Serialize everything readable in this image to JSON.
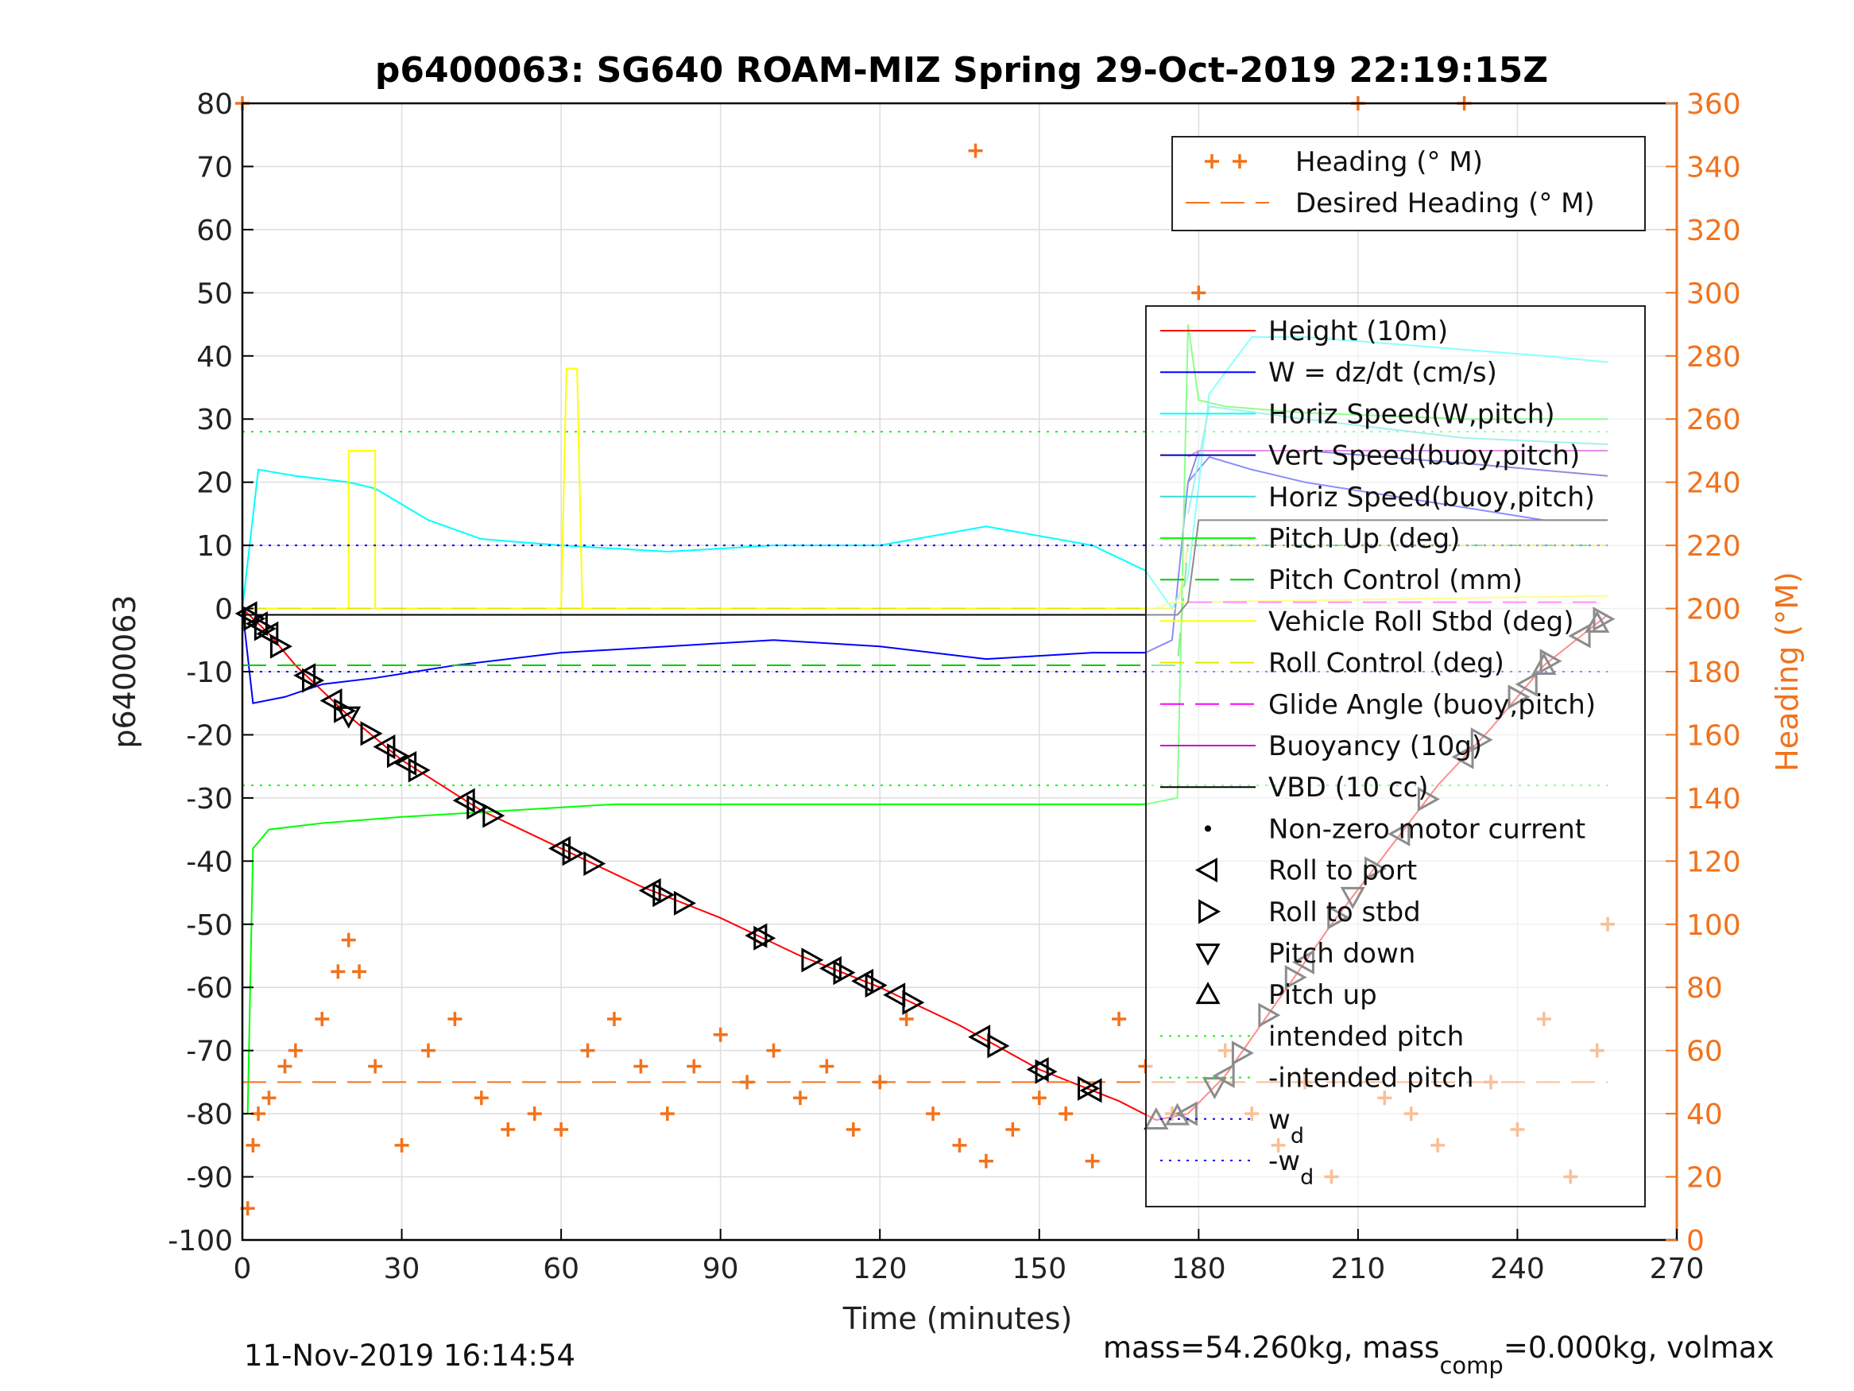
{
  "colors": {
    "heading": "#f2721c",
    "height": "#ff0000",
    "w": "#0000ff",
    "horiz_w": "#00ffff",
    "vert_buoy": "#0000bb",
    "horiz_buoy": "#33dddd",
    "pitch_up": "#00ff00",
    "pitch_control": "#00cc00",
    "roll": "#ffff00",
    "roll_control": "#e6e600",
    "glide": "#ff00ff",
    "buoyancy": "#cc00cc",
    "vbd": "#000000",
    "intended": "#00ff00",
    "wd": "#0000ff",
    "marker": "#000000"
  },
  "chart_data": {
    "type": "line",
    "title": "p6400063: SG640 ROAM-MIZ Spring 29-Oct-2019 22:19:15Z",
    "xlabel": "Time (minutes)",
    "ylabel": "p6400063",
    "y2label": "Heading (°M)",
    "xlim": [
      0,
      270
    ],
    "ylim": [
      -100,
      80
    ],
    "y2lim": [
      0,
      360
    ],
    "xticks": [
      0,
      30,
      60,
      90,
      120,
      150,
      180,
      210,
      240,
      270
    ],
    "yticks": [
      80,
      70,
      60,
      50,
      40,
      30,
      20,
      10,
      0,
      -10,
      -20,
      -30,
      -40,
      -50,
      -60,
      -70,
      -80,
      -90,
      -100
    ],
    "y2ticks": [
      360,
      340,
      320,
      300,
      280,
      260,
      240,
      220,
      200,
      180,
      160,
      140,
      120,
      100,
      80,
      60,
      40,
      20,
      0
    ],
    "grid": true,
    "legend_heading": [
      "Heading (° M)",
      "Desired Heading (° M)"
    ],
    "legend_main": [
      "Height (10m)",
      "W = dz/dt (cm/s)",
      "Horiz Speed(W,pitch)",
      "Vert Speed(buoy,pitch)",
      "Horiz Speed(buoy,pitch)",
      "Pitch Up (deg)",
      "Pitch Control (mm)",
      "Vehicle Roll Stbd (deg)",
      "Roll Control (deg)",
      "Glide Angle (buoy,pitch)",
      "Buoyancy (10g)",
      "VBD (10 cc)",
      "Non-zero motor current",
      "Roll to port",
      "Roll to stbd",
      "Pitch down",
      "Pitch up",
      "intended pitch",
      "-intended pitch",
      "w",
      "-w"
    ],
    "wd_subscript": "d",
    "series": [
      {
        "name": "Height (10m)",
        "x": [
          0,
          5,
          10,
          20,
          30,
          45,
          60,
          75,
          90,
          105,
          120,
          135,
          150,
          165,
          172,
          178,
          185,
          195,
          205,
          215,
          225,
          235,
          245,
          257
        ],
        "y": [
          0,
          -4,
          -9,
          -17,
          -24,
          -32,
          -38,
          -44,
          -49,
          -55,
          -60,
          -66,
          -73,
          -78,
          -81,
          -80,
          -74,
          -62,
          -50,
          -39,
          -28,
          -19,
          -9,
          -1
        ]
      },
      {
        "name": "W = dz/dt (cm/s)",
        "x": [
          0,
          2,
          8,
          15,
          25,
          40,
          60,
          80,
          100,
          120,
          140,
          160,
          170,
          175,
          178,
          182,
          190,
          200,
          215,
          230,
          245,
          257
        ],
        "y": [
          0,
          -15,
          -14,
          -12,
          -11,
          -9,
          -7,
          -6,
          -5,
          -6,
          -8,
          -7,
          -7,
          -5,
          20,
          24,
          22,
          20,
          18,
          16,
          14,
          14
        ]
      },
      {
        "name": "Horiz Speed(W,pitch)",
        "x": [
          0,
          3,
          10,
          20,
          25,
          35,
          45,
          60,
          80,
          100,
          120,
          140,
          160,
          170,
          175,
          178,
          182,
          190,
          200,
          215,
          230,
          245,
          257
        ],
        "y": [
          0,
          22,
          21,
          20,
          19,
          14,
          11,
          10,
          9,
          10,
          10,
          13,
          10,
          6,
          0,
          5,
          34,
          43,
          43,
          42,
          41,
          40,
          39
        ]
      },
      {
        "name": "Vert Speed(buoy,pitch)",
        "x": [
          178,
          180,
          200,
          230,
          257
        ],
        "y": [
          20,
          25,
          25,
          23,
          21
        ]
      },
      {
        "name": "Horiz Speed(buoy,pitch)",
        "x": [
          178,
          182,
          200,
          230,
          257
        ],
        "y": [
          15,
          32,
          30,
          27,
          26
        ]
      },
      {
        "name": "Pitch Up (deg)",
        "x": [
          0,
          1,
          2,
          5,
          15,
          30,
          50,
          70,
          90,
          110,
          130,
          150,
          170,
          176,
          178,
          180,
          185,
          200,
          230,
          257
        ],
        "y": [
          -80,
          -80,
          -38,
          -35,
          -34,
          -33,
          -32,
          -31,
          -31,
          -31,
          -31,
          -31,
          -31,
          -30,
          45,
          33,
          32,
          31,
          30,
          30
        ]
      },
      {
        "name": "Pitch Control (mm)",
        "x": [
          0,
          176,
          178,
          257
        ],
        "y": [
          -9,
          -9,
          10,
          10
        ]
      },
      {
        "name": "Vehicle Roll Stbd (deg)",
        "x": [
          0,
          20,
          20,
          25,
          25,
          60,
          61,
          63,
          64,
          150,
          172,
          175,
          178,
          257
        ],
        "y": [
          0,
          0,
          25,
          25,
          0,
          0,
          38,
          38,
          0,
          0,
          0,
          1,
          1,
          2
        ]
      },
      {
        "name": "Roll Control (deg)",
        "x": [
          0,
          176,
          178,
          257
        ],
        "y": [
          0,
          0,
          10,
          10
        ]
      },
      {
        "name": "Glide Angle (buoy,pitch)",
        "x": [
          178,
          257
        ],
        "y": [
          1,
          1
        ]
      },
      {
        "name": "Buoyancy (10g)",
        "x": [
          178,
          180,
          257
        ],
        "y": [
          24,
          25,
          25
        ]
      },
      {
        "name": "VBD (10 cc)",
        "x": [
          0,
          176,
          178,
          180,
          257
        ],
        "y": [
          -1,
          -1,
          1,
          14,
          14
        ]
      },
      {
        "name": "intended pitch",
        "x": [
          0,
          257
        ],
        "y": [
          28,
          28
        ]
      },
      {
        "name": "-intended pitch",
        "x": [
          0,
          257
        ],
        "y": [
          -28,
          -28
        ]
      },
      {
        "name": "w",
        "x": [
          0,
          257
        ],
        "y": [
          10,
          10
        ]
      },
      {
        "name": "-w",
        "x": [
          0,
          257
        ],
        "y": [
          -10,
          -10
        ]
      },
      {
        "name": "Desired Heading (° M)",
        "x": [
          0,
          257
        ],
        "y2": [
          50,
          50
        ]
      },
      {
        "name": "Heading (° M)",
        "x": [
          0,
          1,
          2,
          3,
          5,
          8,
          10,
          15,
          18,
          20,
          22,
          25,
          30,
          35,
          40,
          45,
          50,
          55,
          60,
          65,
          70,
          75,
          80,
          85,
          90,
          95,
          100,
          105,
          110,
          115,
          120,
          125,
          130,
          135,
          138,
          140,
          145,
          150,
          155,
          160,
          165,
          170,
          175,
          180,
          185,
          190,
          195,
          200,
          205,
          210,
          215,
          220,
          225,
          230,
          235,
          240,
          245,
          250,
          255,
          257
        ],
        "y2": [
          360,
          10,
          30,
          40,
          45,
          55,
          60,
          70,
          85,
          95,
          85,
          55,
          30,
          60,
          70,
          45,
          35,
          40,
          35,
          60,
          70,
          55,
          40,
          55,
          65,
          50,
          60,
          45,
          55,
          35,
          50,
          70,
          40,
          30,
          345,
          25,
          35,
          45,
          40,
          25,
          70,
          55,
          40,
          300,
          60,
          40,
          30,
          50,
          20,
          360,
          45,
          40,
          30,
          360,
          50,
          35,
          70,
          20,
          60,
          100
        ]
      }
    ],
    "markers": {
      "roll_to_port_x": [
        1,
        3,
        5,
        12,
        17,
        27,
        31,
        42,
        60,
        77,
        97,
        111,
        117,
        123,
        139,
        150,
        160,
        178,
        185,
        200,
        218,
        230,
        242,
        252
      ],
      "roll_to_stbd_x": [
        2,
        4,
        7,
        13,
        19,
        24,
        29,
        33,
        44,
        47,
        62,
        66,
        79,
        83,
        98,
        107,
        113,
        119,
        126,
        142,
        151,
        159,
        188,
        193,
        198,
        206,
        213,
        223,
        233,
        240,
        246,
        256
      ],
      "pitch_down_x": [
        20,
        183,
        209
      ],
      "pitch_up_x": [
        172,
        176,
        245,
        255
      ]
    },
    "footer_left": "11-Nov-2019 16:14:54",
    "footer_right_parts": [
      "mass=54.260kg, mass",
      "comp",
      "=0.000kg, volmax"
    ]
  }
}
